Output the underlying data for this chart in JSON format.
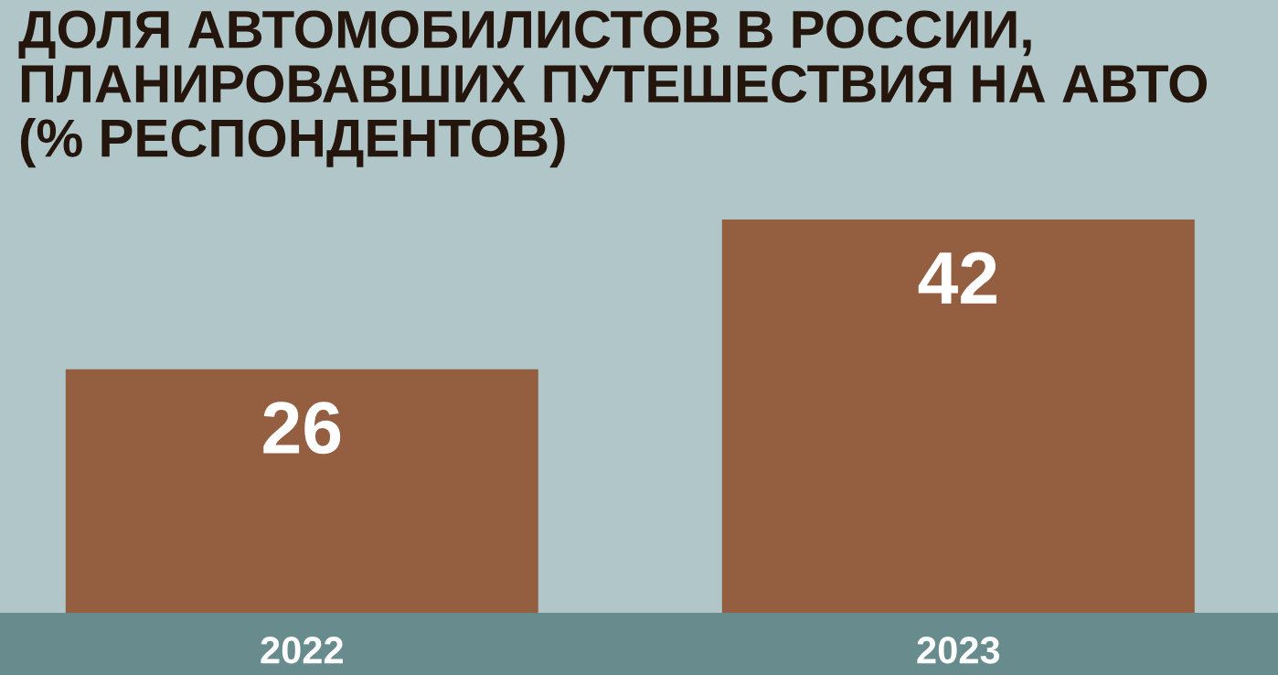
{
  "chart_data": {
    "type": "bar",
    "title": "ДОЛЯ АВТОМОБИЛИСТОВ В РОССИИ,\nПЛАНИРОВАВШИХ ПУТЕШЕСТВИЯ НА АВТО\n(% РЕСПОНДЕНТОВ)",
    "categories": [
      "2022",
      "2023"
    ],
    "values": [
      26,
      42
    ],
    "color": "#945f40",
    "data_labels": true,
    "grid": false,
    "legend": false
  }
}
